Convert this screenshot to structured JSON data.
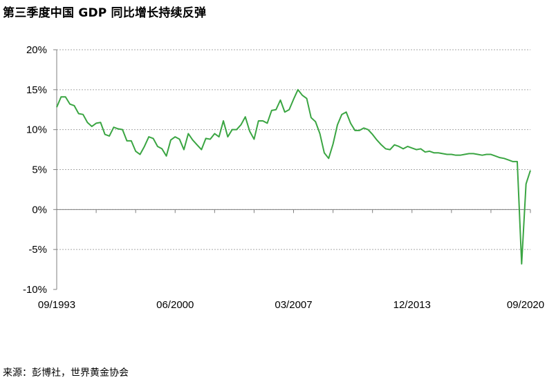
{
  "chart_title": "第三季度中国 GDP 同比增长持续反弹",
  "source": "来源：彭博社，世界黄金协会",
  "colors": {
    "line": "#3aa542",
    "grid": "#a6a6a6",
    "axis": "#7f7f7f"
  },
  "chart_data": {
    "type": "line",
    "title": "第三季度中国 GDP 同比增长持续反弹",
    "xlabel": "",
    "ylabel": "",
    "ylim": [
      -10,
      20
    ],
    "y_ticks": [
      "20%",
      "15%",
      "10%",
      "5%",
      "0%",
      "-5%",
      "-10%"
    ],
    "x_tick_labels": [
      "09/1993",
      "06/2000",
      "03/2007",
      "12/2013",
      "09/2020"
    ],
    "grid": "horizontal dashed",
    "legend": "none",
    "series": [
      {
        "x": [
          "09/1993",
          "12/1993",
          "03/1994",
          "06/1994",
          "09/1994",
          "12/1994",
          "03/1995",
          "06/1995",
          "09/1995",
          "12/1995",
          "03/1996",
          "06/1996",
          "09/1996",
          "12/1996",
          "03/1997",
          "06/1997",
          "09/1997",
          "12/1997",
          "03/1998",
          "06/1998",
          "09/1998",
          "12/1998",
          "03/1999",
          "06/1999",
          "09/1999",
          "12/1999",
          "03/2000",
          "06/2000",
          "09/2000",
          "12/2000",
          "03/2001",
          "06/2001",
          "09/2001",
          "12/2001",
          "03/2002",
          "06/2002",
          "09/2002",
          "12/2002",
          "03/2003",
          "06/2003",
          "09/2003",
          "12/2003",
          "03/2004",
          "06/2004",
          "09/2004",
          "12/2004",
          "03/2005",
          "06/2005",
          "09/2005",
          "12/2005",
          "03/2006",
          "06/2006",
          "09/2006",
          "12/2006",
          "03/2007",
          "06/2007",
          "09/2007",
          "12/2007",
          "03/2008",
          "06/2008",
          "09/2008",
          "12/2008",
          "03/2009",
          "06/2009",
          "09/2009",
          "12/2009",
          "03/2010",
          "06/2010",
          "09/2010",
          "12/2010",
          "03/2011",
          "06/2011",
          "09/2011",
          "12/2011",
          "03/2012",
          "06/2012",
          "09/2012",
          "12/2012",
          "03/2013",
          "06/2013",
          "09/2013",
          "12/2013",
          "03/2014",
          "06/2014",
          "09/2014",
          "12/2014",
          "03/2015",
          "06/2015",
          "09/2015",
          "12/2015",
          "03/2016",
          "06/2016",
          "09/2016",
          "12/2016",
          "03/2017",
          "06/2017",
          "09/2017",
          "12/2017",
          "03/2018",
          "06/2018",
          "09/2018",
          "12/2018",
          "03/2019",
          "06/2019",
          "09/2019",
          "12/2019",
          "03/2020",
          "06/2020",
          "09/2020"
        ],
        "values": [
          12.8,
          14.1,
          14.1,
          13.2,
          13.0,
          12.0,
          11.9,
          10.9,
          10.4,
          10.8,
          10.9,
          9.4,
          9.2,
          10.3,
          10.1,
          10.0,
          8.6,
          8.6,
          7.3,
          6.9,
          7.9,
          9.1,
          8.9,
          7.9,
          7.6,
          6.7,
          8.7,
          9.1,
          8.8,
          7.5,
          9.5,
          8.7,
          8.1,
          7.5,
          8.9,
          8.8,
          9.5,
          9.1,
          11.1,
          9.1,
          10.0,
          10.0,
          10.6,
          11.6,
          9.8,
          8.8,
          11.1,
          11.1,
          10.8,
          12.4,
          12.5,
          13.7,
          12.2,
          12.5,
          13.8,
          15.0,
          14.3,
          13.9,
          11.5,
          11.0,
          9.5,
          7.1,
          6.4,
          8.2,
          10.6,
          11.9,
          12.2,
          10.8,
          9.9,
          9.9,
          10.2,
          10.0,
          9.4,
          8.7,
          8.1,
          7.6,
          7.5,
          8.1,
          7.9,
          7.6,
          7.9,
          7.7,
          7.5,
          7.6,
          7.2,
          7.3,
          7.1,
          7.1,
          7.0,
          6.9,
          6.9,
          6.8,
          6.8,
          6.9,
          7.0,
          7.0,
          6.9,
          6.8,
          6.9,
          6.9,
          6.7,
          6.5,
          6.4,
          6.2,
          6.0,
          6.0,
          -6.8,
          3.2,
          4.9
        ]
      }
    ]
  }
}
